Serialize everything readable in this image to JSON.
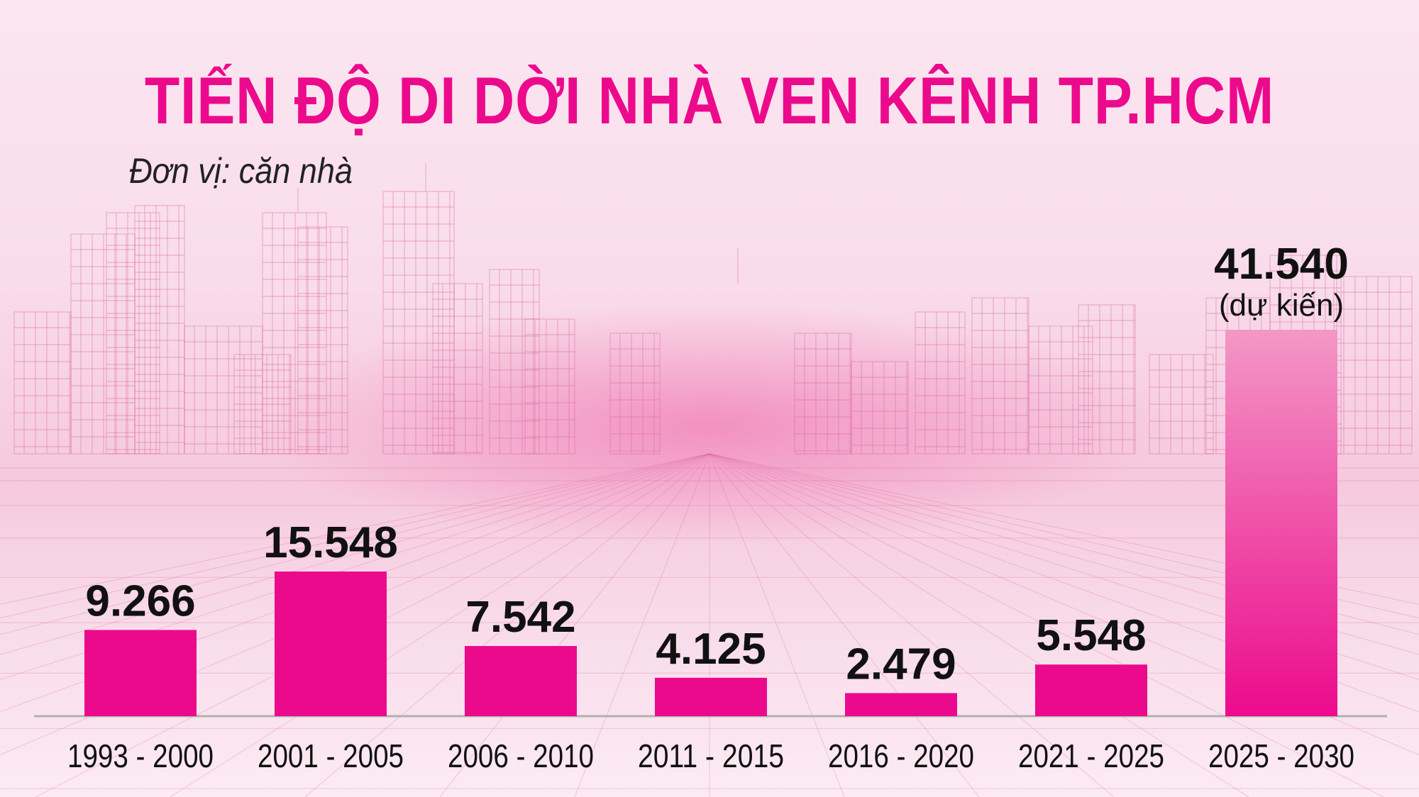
{
  "title": "TIẾN ĐỘ DI DỜI NHÀ VEN KÊNH TP.HCM",
  "unit_label": "Đơn vị: căn nhà",
  "colors": {
    "bar": "#ec0a8c",
    "bar_forecast_top": "#f398c6",
    "bar_forecast_bottom": "#ec0a8c",
    "title": "#ec0a8c",
    "text": "#111111"
  },
  "chart_data": {
    "type": "bar",
    "title": "TIẾN ĐỘ DI DỜI NHÀ VEN KÊNH TP.HCM",
    "ylabel": "Đơn vị: căn nhà",
    "xlabel": "",
    "categories": [
      "1993 - 2000",
      "2001 - 2005",
      "2006 - 2010",
      "2011 - 2015",
      "2016 - 2020",
      "2021 - 2025",
      "2025 - 2030"
    ],
    "values": [
      9266,
      15548,
      7542,
      4125,
      2479,
      5548,
      41540
    ],
    "value_labels": [
      "9.266",
      "15.548",
      "7.542",
      "4.125",
      "2.479",
      "5.548",
      "41.540"
    ],
    "notes": [
      "",
      "",
      "",
      "",
      "",
      "",
      "(dự kiến)"
    ],
    "forecast_index": 6,
    "ylim": [
      0,
      41540
    ],
    "grid": false,
    "legend": "none"
  }
}
